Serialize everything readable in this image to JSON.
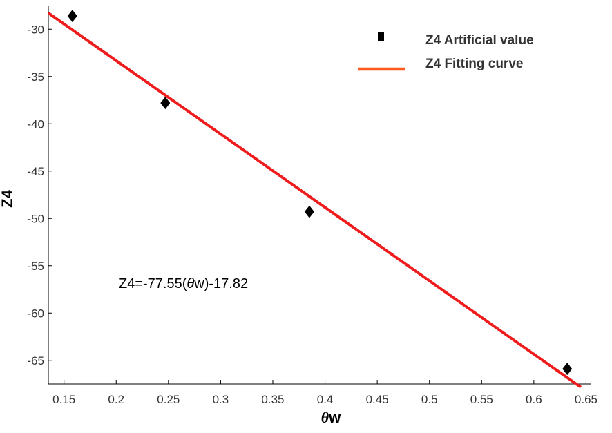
{
  "chart_data": {
    "type": "scatter",
    "xlabel_parts": [
      "θ",
      "w"
    ],
    "ylabel": "Z4",
    "xlim": [
      0.135,
      0.655
    ],
    "ylim": [
      -67.5,
      -27.5
    ],
    "xticks": [
      0.15,
      0.2,
      0.25,
      0.3,
      0.35,
      0.4,
      0.45,
      0.5,
      0.55,
      0.6,
      0.65
    ],
    "xtick_labels": [
      "0.15",
      "0.2",
      "0.25",
      "0.3",
      "0.35",
      "0.4",
      "0.45",
      "0.5",
      "0.55",
      "0.6",
      "0.65"
    ],
    "yticks": [
      -30,
      -35,
      -40,
      -45,
      -50,
      -55,
      -60,
      -65
    ],
    "ytick_labels": [
      "-30",
      "-35",
      "-40",
      "-45",
      "-50",
      "-55",
      "-60",
      "-65"
    ],
    "grid": false,
    "legend_position": "top-right",
    "series": [
      {
        "name": "Z4 Artificial value",
        "kind": "scatter",
        "marker": "diamond",
        "color": "#000000",
        "points": [
          {
            "x": 0.158,
            "y": -28.6
          },
          {
            "x": 0.247,
            "y": -37.8
          },
          {
            "x": 0.385,
            "y": -49.3
          },
          {
            "x": 0.632,
            "y": -65.9
          }
        ]
      },
      {
        "name": "Z4 Fitting curve",
        "kind": "line",
        "color": "#ee1c1c",
        "legend_color": "#ff5a1f",
        "slope": -77.55,
        "intercept": -17.82,
        "x_range": [
          0.135,
          0.645
        ]
      }
    ],
    "annotations": [
      {
        "text_parts": [
          "Z4=-77.55(",
          "θ",
          "w)-17.82"
        ]
      }
    ]
  }
}
